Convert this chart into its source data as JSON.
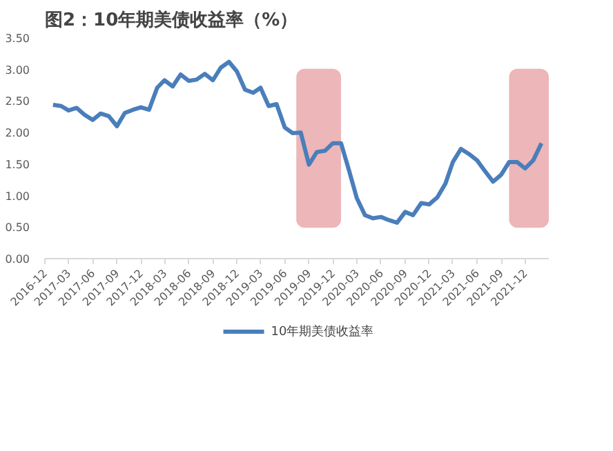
{
  "chart_data": {
    "type": "line",
    "title": "图2：10年期美债收益率（%）",
    "x": [
      "2017-01",
      "2017-02",
      "2017-03",
      "2017-04",
      "2017-05",
      "2017-06",
      "2017-07",
      "2017-08",
      "2017-09",
      "2017-10",
      "2017-11",
      "2017-12",
      "2018-01",
      "2018-02",
      "2018-03",
      "2018-04",
      "2018-05",
      "2018-06",
      "2018-07",
      "2018-08",
      "2018-09",
      "2018-10",
      "2018-11",
      "2018-12",
      "2019-01",
      "2019-02",
      "2019-03",
      "2019-04",
      "2019-05",
      "2019-06",
      "2019-07",
      "2019-08",
      "2019-09",
      "2019-10",
      "2019-11",
      "2019-12",
      "2020-01",
      "2020-02",
      "2020-03",
      "2020-04",
      "2020-05",
      "2020-06",
      "2020-07",
      "2020-08",
      "2020-09",
      "2020-10",
      "2020-11",
      "2020-12",
      "2021-01",
      "2021-02",
      "2021-03",
      "2021-04",
      "2021-05",
      "2021-06",
      "2021-07",
      "2021-08",
      "2021-09",
      "2021-10",
      "2021-11",
      "2021-12",
      "2022-01",
      "2022-02"
    ],
    "series": [
      {
        "name": "10年期美债收益率",
        "color": "#4a7ebb",
        "values": [
          2.44,
          2.42,
          2.35,
          2.39,
          2.28,
          2.2,
          2.3,
          2.26,
          2.1,
          2.31,
          2.36,
          2.4,
          2.36,
          2.71,
          2.83,
          2.73,
          2.92,
          2.82,
          2.84,
          2.93,
          2.83,
          3.03,
          3.12,
          2.97,
          2.68,
          2.63,
          2.71,
          2.42,
          2.45,
          2.08,
          1.99,
          2.0,
          1.49,
          1.69,
          1.71,
          1.83,
          1.83,
          1.39,
          0.96,
          0.69,
          0.64,
          0.66,
          0.61,
          0.57,
          0.74,
          0.69,
          0.88,
          0.86,
          0.97,
          1.19,
          1.53,
          1.74,
          1.66,
          1.56,
          1.39,
          1.22,
          1.33,
          1.53,
          1.53,
          1.43,
          1.56,
          1.83
        ]
      }
    ],
    "xlim": [
      "2016-12",
      "2022-03"
    ],
    "xticks": [
      "2016-12",
      "2017-03",
      "2017-06",
      "2017-09",
      "2017-12",
      "2018-03",
      "2018-06",
      "2018-09",
      "2018-12",
      "2019-03",
      "2019-06",
      "2019-09",
      "2019-12",
      "2020-03",
      "2020-06",
      "2020-09",
      "2020-12",
      "2021-03",
      "2021-06",
      "2021-09",
      "2021-12"
    ],
    "ylim": [
      0,
      3.5
    ],
    "yticks": [
      {
        "value": 0,
        "label": "0.00"
      },
      {
        "value": 0.5,
        "label": "0.50"
      },
      {
        "value": 1,
        "label": "1.00"
      },
      {
        "value": 1.5,
        "label": "1.50"
      },
      {
        "value": 2,
        "label": "2.00"
      },
      {
        "value": 2.5,
        "label": "2.50"
      },
      {
        "value": 3,
        "label": "3.00"
      },
      {
        "value": 3.5,
        "label": "3.50"
      }
    ],
    "bands": [
      {
        "axis": "x",
        "from": "2019-07-15",
        "to": "2020-01-01",
        "color": "#e8a4a6"
      },
      {
        "axis": "x",
        "from": "2021-10-01",
        "to": "2022-03",
        "color": "#e8a4a6"
      }
    ],
    "grid": false,
    "legend": "bottom",
    "marker": "none",
    "line_style": "solid"
  }
}
